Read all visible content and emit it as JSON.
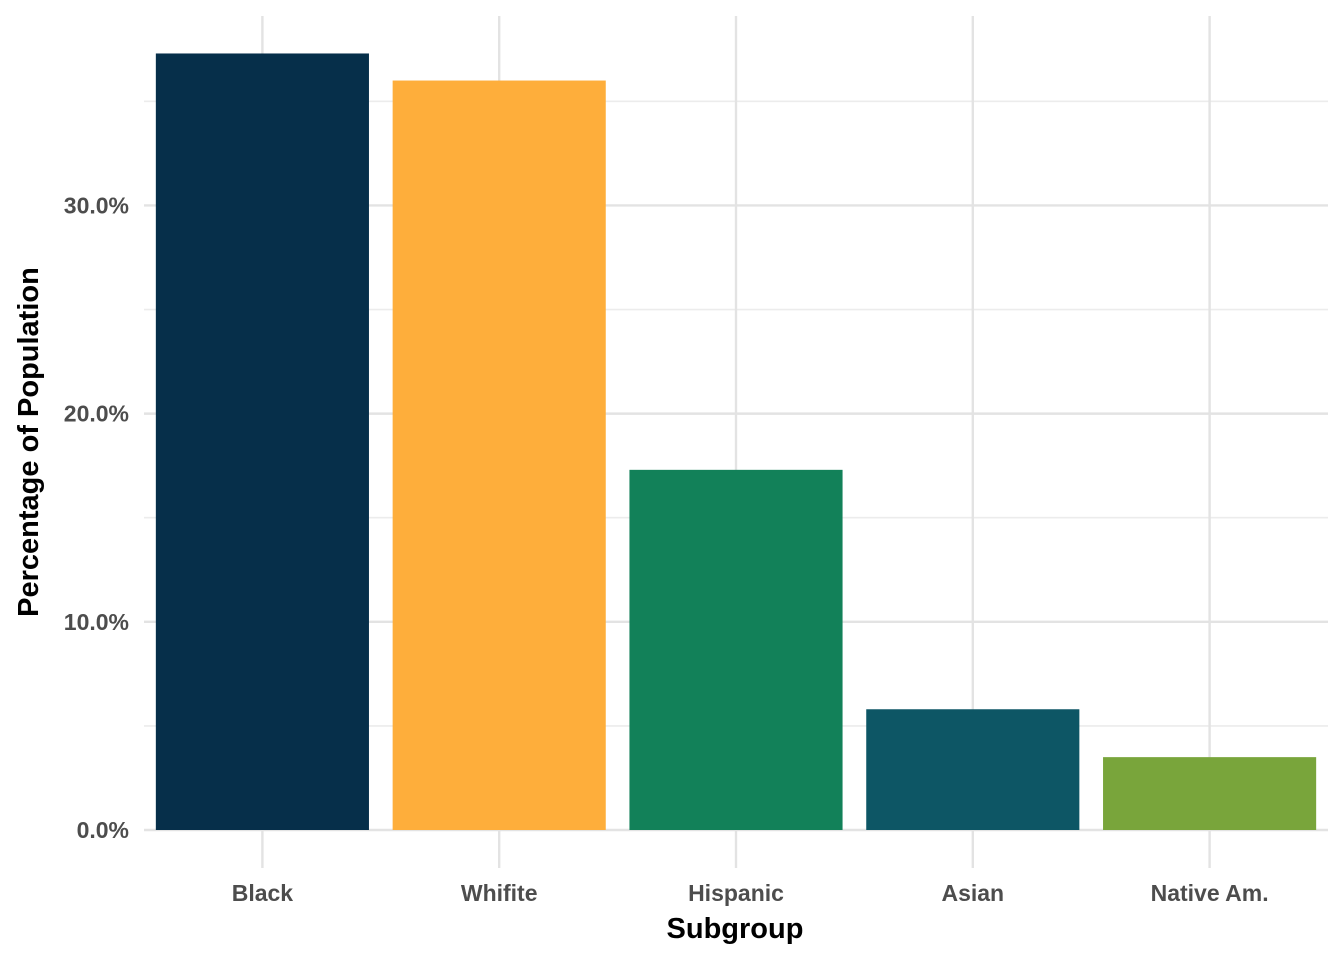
{
  "chart_data": {
    "type": "bar",
    "categories": [
      "Black",
      "Whifite",
      "Hispanic",
      "Asian",
      "Native Am."
    ],
    "values": [
      37.3,
      36.0,
      17.3,
      5.8,
      3.5
    ],
    "colors": [
      "#062f4a",
      "#feae3b",
      "#128159",
      "#0d5665",
      "#79a53b"
    ],
    "xlabel": "Subgroup",
    "ylabel": "Percentage of Population",
    "ylim": [
      0,
      39.1
    ],
    "yticks": [
      0,
      10,
      20,
      30
    ],
    "ytick_labels": [
      "0.0%",
      "10.0%",
      "20.0%",
      "30.0%"
    ],
    "grid": true,
    "legend": "none"
  }
}
